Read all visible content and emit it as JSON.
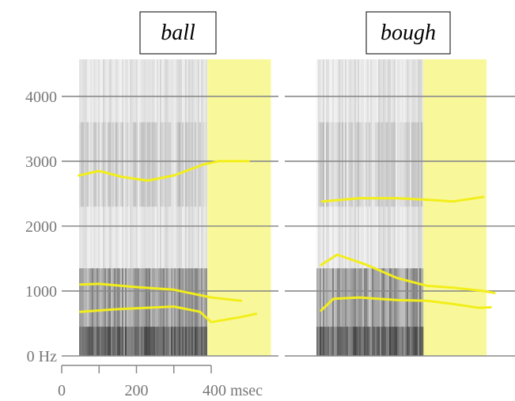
{
  "chart_data": {
    "type": "line",
    "ylim": [
      0,
      4570
    ],
    "yticks": [
      {
        "value": 0,
        "label": "0 Hz"
      },
      1000,
      2000,
      3000,
      4000
    ],
    "xticks": [
      0,
      200,
      {
        "value": 400,
        "label": "400 msec"
      }
    ],
    "xminorticks": [
      100,
      300
    ],
    "grid": true,
    "highlight_color": "#f6f57a",
    "panels": [
      {
        "title": "ball",
        "xlim": [
          0,
          580
        ],
        "highlight": [
          390,
          560
        ],
        "series": [
          {
            "color": "#f2ee1a",
            "x": [
              46,
              100,
              160,
              230,
              300,
              380,
              420,
              500
            ],
            "values": [
              2780,
              2850,
              2760,
              2700,
              2780,
              2950,
              3000,
              3000
            ]
          },
          {
            "color": "#f2ee1a",
            "x": [
              50,
              100,
              200,
              300,
              400,
              480
            ],
            "values": [
              1100,
              1110,
              1060,
              1020,
              900,
              850
            ]
          },
          {
            "color": "#f2ee1a",
            "x": [
              50,
              150,
              300,
              370,
              400,
              480,
              520
            ],
            "values": [
              680,
              720,
              760,
              680,
              520,
              600,
              650
            ]
          }
        ]
      },
      {
        "title": "bough",
        "xlim": [
          0,
          615
        ],
        "highlight": [
          370,
          539
        ],
        "series": [
          {
            "color": "#f2ee1a",
            "x": [
              100,
              200,
              300,
              400,
              450,
              530
            ],
            "values": [
              2380,
              2430,
              2430,
              2400,
              2380,
              2450
            ]
          },
          {
            "color": "#f2ee1a",
            "x": [
              97,
              140,
              220,
              300,
              380,
              450,
              530,
              560
            ],
            "values": [
              1400,
              1560,
              1400,
              1200,
              1080,
              1050,
              1000,
              970
            ]
          },
          {
            "color": "#f2ee1a",
            "x": [
              97,
              130,
              200,
              300,
              380,
              450,
              520,
              550
            ],
            "values": [
              700,
              880,
              900,
              860,
              850,
              800,
              740,
              750
            ]
          }
        ]
      }
    ]
  }
}
